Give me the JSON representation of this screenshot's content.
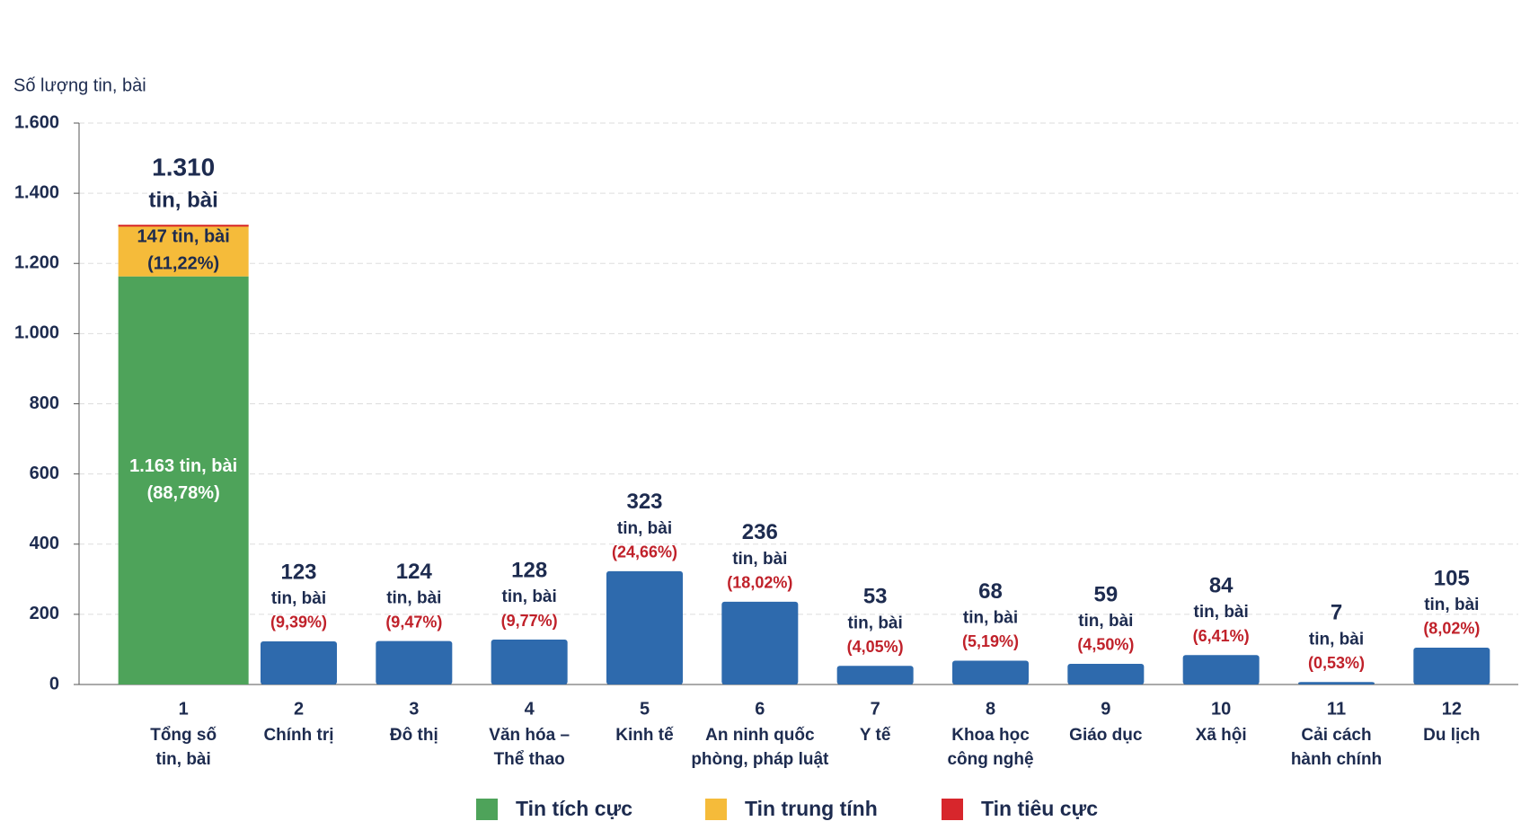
{
  "chart_data": {
    "type": "bar",
    "y_axis_label": "Số lượng tin, bài",
    "category_numbers": [
      "1",
      "2",
      "3",
      "4",
      "5",
      "6",
      "7",
      "8",
      "9",
      "10",
      "11",
      "12"
    ],
    "categories": [
      [
        "Tổng số",
        "tin, bài"
      ],
      [
        "Chính trị"
      ],
      [
        "Đô thị"
      ],
      [
        "Văn hóa –",
        "Thể thao"
      ],
      [
        "Kinh tế"
      ],
      [
        "An ninh quốc",
        "phòng, pháp luật"
      ],
      [
        "Y tế"
      ],
      [
        "Khoa học",
        "công nghệ"
      ],
      [
        "Giáo dục"
      ],
      [
        "Xã hội"
      ],
      [
        "Cải cách",
        "hành chính"
      ],
      [
        "Du lịch"
      ]
    ],
    "ylim": [
      0,
      1600
    ],
    "yticks": [
      0,
      200,
      400,
      600,
      800,
      {
        "value": 1000,
        "label": "1.000"
      },
      {
        "value": 1200,
        "label": "1.200"
      },
      {
        "value": 1400,
        "label": "1.400"
      },
      {
        "value": 1600,
        "label": "1.600"
      }
    ],
    "grid": true,
    "color": "#2e6aad",
    "values": [
      1310,
      123,
      124,
      128,
      323,
      236,
      53,
      68,
      59,
      84,
      7,
      105
    ],
    "value_labels": [
      "1.310",
      "123",
      "124",
      "128",
      "323",
      "236",
      "53",
      "68",
      "59",
      "84",
      "7",
      "105"
    ],
    "unit_label": "tin, bài",
    "shares": [
      null,
      9.39,
      9.47,
      9.77,
      24.66,
      18.02,
      4.05,
      5.19,
      4.5,
      6.41,
      0.53,
      8.02
    ],
    "share_labels": [
      null,
      "(9,39%)",
      "(9,47%)",
      "(9,77%)",
      "(24,66%)",
      "(18,02%)",
      "(4,05%)",
      "(5,19%)",
      "(4,50%)",
      "(6,41%)",
      "(0,53%)",
      "(8,02%)"
    ],
    "series": [
      {
        "name": "Tin tích cực",
        "color": "#4ea35a",
        "values": [
          1163,
          null,
          null,
          null,
          null,
          null,
          null,
          null,
          null,
          null,
          null,
          null
        ],
        "value_labels": [
          "1.163 tin, bài",
          null,
          null,
          null,
          null,
          null,
          null,
          null,
          null,
          null,
          null,
          null
        ],
        "shares": [
          88.78,
          null,
          null,
          null,
          null,
          null,
          null,
          null,
          null,
          null,
          null,
          null
        ],
        "share_labels": [
          "(88,78%)",
          null,
          null,
          null,
          null,
          null,
          null,
          null,
          null,
          null,
          null,
          null
        ]
      },
      {
        "name": "Tin trung tính",
        "color": "#f5bb3a",
        "values": [
          147,
          null,
          null,
          null,
          null,
          null,
          null,
          null,
          null,
          null,
          null,
          null
        ],
        "value_labels": [
          "147 tin, bài",
          null,
          null,
          null,
          null,
          null,
          null,
          null,
          null,
          null,
          null,
          null
        ],
        "shares": [
          11.22,
          null,
          null,
          null,
          null,
          null,
          null,
          null,
          null,
          null,
          null,
          null
        ],
        "share_labels": [
          "(11,22%)",
          null,
          null,
          null,
          null,
          null,
          null,
          null,
          null,
          null,
          null,
          null
        ]
      },
      {
        "name": "Tin tiêu cực",
        "color": "#d7262c",
        "values": [
          0,
          null,
          null,
          null,
          null,
          null,
          null,
          null,
          null,
          null,
          null,
          null
        ]
      }
    ]
  }
}
